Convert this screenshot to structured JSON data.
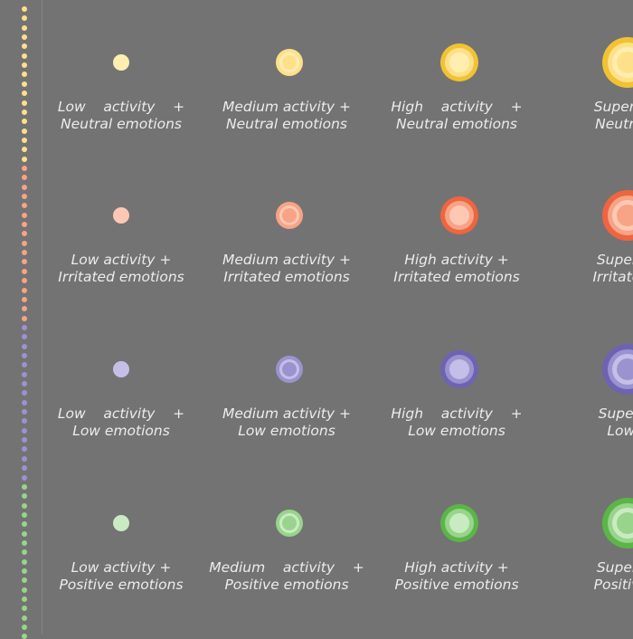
{
  "colors": {
    "background": "#737373",
    "caption_text": "#ececec",
    "neutral": [
      "#f1c232",
      "#ffe08a",
      "#ffeeb0"
    ],
    "irritated": [
      "#ee6540",
      "#f7a386",
      "#fcc8b4"
    ],
    "low": [
      "#6e63b3",
      "#9b93cf",
      "#c5bfe8"
    ],
    "positive": [
      "#5cb547",
      "#98d48c",
      "#c9ebc2"
    ]
  },
  "legend": {
    "rows": [
      {
        "emotion": "neutral",
        "cells": [
          {
            "line1": "Low    activity    +",
            "line2": "Neutral emotions",
            "activity_level": 1
          },
          {
            "line1": "Medium activity +",
            "line2": "Neutral emotions",
            "activity_level": 2
          },
          {
            "line1": "High    activity    +",
            "line2": "Neutral emotions",
            "activity_level": 3
          },
          {
            "line1": "Super    a",
            "line2": "Neutral e",
            "activity_level": 4
          }
        ]
      },
      {
        "emotion": "irritated",
        "cells": [
          {
            "line1": "Low activity +",
            "line2": "Irritated emotions",
            "activity_level": 1
          },
          {
            "line1": "Medium activity +",
            "line2": "Irritated emotions",
            "activity_level": 2
          },
          {
            "line1": "High activity +",
            "line2": "Irritated emotions",
            "activity_level": 3
          },
          {
            "line1": "Super ac",
            "line2": "Irritated e",
            "activity_level": 4
          }
        ]
      },
      {
        "emotion": "low",
        "cells": [
          {
            "line1": "Low    activity    +",
            "line2": "Low emotions",
            "activity_level": 1
          },
          {
            "line1": "Medium activity +",
            "line2": "Low emotions",
            "activity_level": 2
          },
          {
            "line1": "High    activity    +",
            "line2": "Low emotions",
            "activity_level": 3
          },
          {
            "line1": "Super  a",
            "line2": "Low e",
            "activity_level": 4
          }
        ]
      },
      {
        "emotion": "positive",
        "cells": [
          {
            "line1": "Low activity +",
            "line2": "Positive emotions",
            "activity_level": 1
          },
          {
            "line1": "Medium    activity    +",
            "line2": "Positive emotions",
            "activity_level": 2
          },
          {
            "line1": "High activity +",
            "line2": "Positive emotions",
            "activity_level": 3
          },
          {
            "line1": "Super ac",
            "line2": "Positive e",
            "activity_level": 4
          }
        ]
      }
    ]
  },
  "dot_column": {
    "segments": [
      {
        "color": "#ffe08a",
        "count": 17
      },
      {
        "color": "#f7a386",
        "count": 17
      },
      {
        "color": "#9b93cf",
        "count": 17
      },
      {
        "color": "#98d48c",
        "count": 17
      }
    ]
  }
}
